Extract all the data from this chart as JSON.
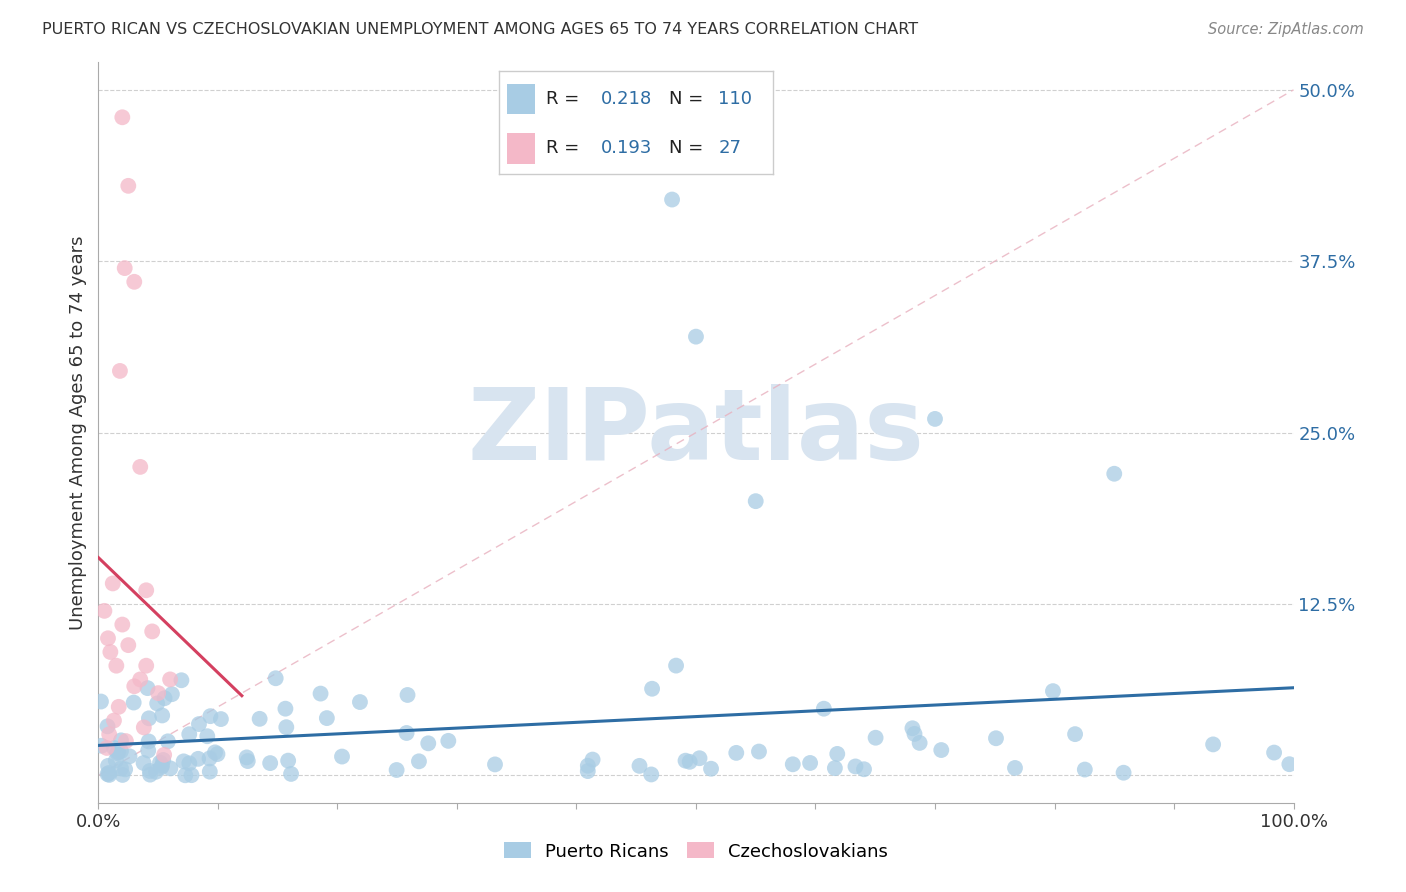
{
  "title": "PUERTO RICAN VS CZECHOSLOVAKIAN UNEMPLOYMENT AMONG AGES 65 TO 74 YEARS CORRELATION CHART",
  "source": "Source: ZipAtlas.com",
  "ylabel": "Unemployment Among Ages 65 to 74 years",
  "legend_label1": "Puerto Ricans",
  "legend_label2": "Czechoslovakians",
  "R1": "0.218",
  "N1": "110",
  "R2": "0.193",
  "N2": "27",
  "color_blue": "#a8cce4",
  "color_pink": "#f4b8c8",
  "trendline_blue": "#2e6da4",
  "trendline_pink": "#d44060",
  "watermark_color": "#d8e4f0",
  "watermark_text": "ZIPatlas",
  "background_color": "#ffffff",
  "grid_color": "#d0d0d0",
  "xlim": [
    0.0,
    1.0
  ],
  "ylim": [
    -0.02,
    0.52
  ],
  "y_ticks": [
    0.0,
    0.125,
    0.25,
    0.375,
    0.5
  ],
  "y_tick_labels": [
    "",
    "12.5%",
    "25.0%",
    "37.5%",
    "50.0%"
  ],
  "x_ticks": [
    0.0,
    0.1,
    0.2,
    0.3,
    0.4,
    0.5,
    0.6,
    0.7,
    0.8,
    0.9,
    1.0
  ],
  "x_tick_labels_show": [
    "0.0%",
    "",
    "",
    "",
    "",
    "",
    "",
    "",
    "",
    "",
    "100.0%"
  ]
}
